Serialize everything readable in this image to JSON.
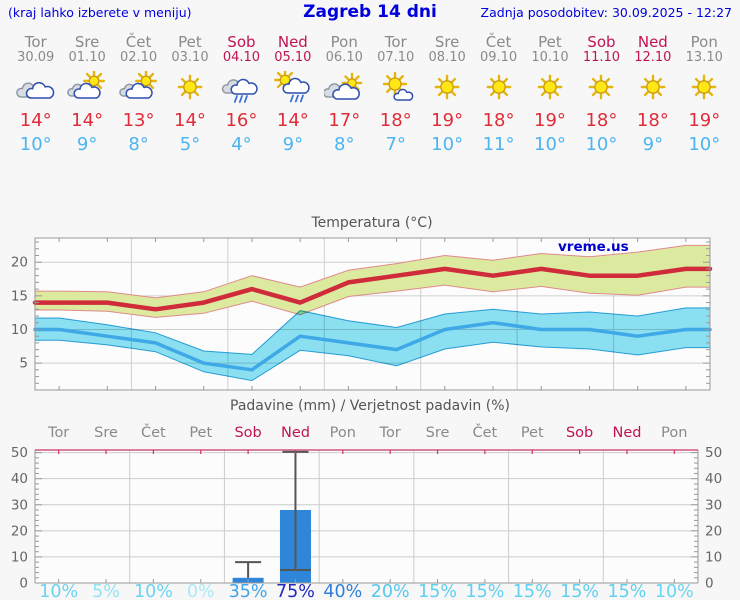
{
  "header": {
    "left_note": "(kraj lahko izberete v meniju)",
    "title": "Zagreb 14 dni",
    "updated": "Zadnja posodobitev: 30.09.2025 - 12:27"
  },
  "watermark": "vreme.us",
  "colors": {
    "header_blue": "#0000dd",
    "weekday_gray": "#8a8a8a",
    "weekend_crimson": "#c01355",
    "tmax_red": "#e02d39",
    "tmin_blue": "#4cb4f0",
    "background": "#f7f7f7"
  },
  "forecast": {
    "days": [
      {
        "name": "Tor",
        "date": "30.09",
        "weekend": false,
        "icon": "cloudy",
        "tmax": "14°",
        "tmin": "10°"
      },
      {
        "name": "Sre",
        "date": "01.10",
        "weekend": false,
        "icon": "partly-sunny",
        "tmax": "14°",
        "tmin": "9°"
      },
      {
        "name": "Čet",
        "date": "02.10",
        "weekend": false,
        "icon": "partly-sunny",
        "tmax": "13°",
        "tmin": "8°"
      },
      {
        "name": "Pet",
        "date": "03.10",
        "weekend": false,
        "icon": "sunny",
        "tmax": "14°",
        "tmin": "5°"
      },
      {
        "name": "Sob",
        "date": "04.10",
        "weekend": true,
        "icon": "rain",
        "tmax": "16°",
        "tmin": "4°"
      },
      {
        "name": "Ned",
        "date": "05.10",
        "weekend": true,
        "icon": "sun-rain",
        "tmax": "14°",
        "tmin": "9°"
      },
      {
        "name": "Pon",
        "date": "06.10",
        "weekend": false,
        "icon": "mostly-cloudy",
        "tmax": "17°",
        "tmin": "8°"
      },
      {
        "name": "Tor",
        "date": "07.10",
        "weekend": false,
        "icon": "mostly-sunny",
        "tmax": "18°",
        "tmin": "7°"
      },
      {
        "name": "Sre",
        "date": "08.10",
        "weekend": false,
        "icon": "sunny",
        "tmax": "19°",
        "tmin": "10°"
      },
      {
        "name": "Čet",
        "date": "09.10",
        "weekend": false,
        "icon": "sunny",
        "tmax": "18°",
        "tmin": "11°"
      },
      {
        "name": "Pet",
        "date": "10.10",
        "weekend": false,
        "icon": "sunny",
        "tmax": "19°",
        "tmin": "10°"
      },
      {
        "name": "Sob",
        "date": "11.10",
        "weekend": true,
        "icon": "sunny",
        "tmax": "18°",
        "tmin": "10°"
      },
      {
        "name": "Ned",
        "date": "12.10",
        "weekend": true,
        "icon": "sunny",
        "tmax": "18°",
        "tmin": "9°"
      },
      {
        "name": "Pon",
        "date": "13.10",
        "weekend": false,
        "icon": "sunny",
        "tmax": "19°",
        "tmin": "10°"
      }
    ]
  },
  "chart_data": [
    {
      "type": "line",
      "title": "Temperatura (°C)",
      "categories": [
        "Tor",
        "Sre",
        "Čet",
        "Pet",
        "Sob",
        "Ned",
        "Pon",
        "Tor",
        "Sre",
        "Čet",
        "Pet",
        "Sob",
        "Ned",
        "Pon"
      ],
      "series": [
        {
          "name": "max temperature",
          "color": "#cf2b3a",
          "values": [
            14,
            14,
            13,
            14,
            16,
            14,
            17,
            18,
            19,
            18,
            19,
            18,
            18,
            19
          ]
        },
        {
          "name": "min temperature",
          "color": "#3fa8e6",
          "values": [
            10,
            9,
            8,
            5,
            4,
            9,
            8,
            7,
            10,
            11,
            10,
            10,
            9,
            10
          ]
        }
      ],
      "bands": [
        {
          "name": "max range",
          "fill": "#dcea9f",
          "edge": "#e08a8a",
          "upper": [
            15.7,
            15.6,
            14.7,
            15.6,
            18.0,
            16.3,
            18.8,
            19.8,
            21.0,
            20.3,
            21.3,
            20.8,
            21.5,
            22.5
          ],
          "lower": [
            12.9,
            12.7,
            11.8,
            12.4,
            14.2,
            12.2,
            14.9,
            15.7,
            16.6,
            15.6,
            16.4,
            15.4,
            15.1,
            16.3
          ]
        },
        {
          "name": "min range",
          "fill": "#8ce2f4",
          "edge": "#35a8dc",
          "upper": [
            11.7,
            10.7,
            9.5,
            6.8,
            6.3,
            12.8,
            11.3,
            10.3,
            12.3,
            13.0,
            12.3,
            12.6,
            12.0,
            13.2
          ],
          "lower": [
            8.4,
            7.7,
            6.7,
            3.7,
            2.4,
            6.9,
            6.1,
            4.6,
            7.1,
            8.1,
            7.4,
            7.1,
            6.2,
            7.3
          ]
        }
      ],
      "ylim": [
        1,
        23.6
      ],
      "yticks": [
        5,
        10,
        15,
        20
      ],
      "grid": true,
      "legend": "none"
    },
    {
      "type": "bar",
      "title": "Padavine (mm) / Verjetnost padavin (%)",
      "categories": [
        "Tor",
        "Sre",
        "Čet",
        "Pet",
        "Sob",
        "Ned",
        "Pon",
        "Tor",
        "Sre",
        "Čet",
        "Pet",
        "Sob",
        "Ned",
        "Pon"
      ],
      "weekend_mask": [
        false,
        false,
        false,
        false,
        true,
        true,
        false,
        false,
        false,
        false,
        false,
        true,
        true,
        false
      ],
      "values": [
        0,
        0,
        0,
        0,
        2,
        28,
        0,
        0,
        0,
        0,
        0,
        0,
        0,
        0
      ],
      "whisker_low": [
        null,
        null,
        null,
        null,
        null,
        5,
        null,
        null,
        null,
        null,
        null,
        null,
        null,
        null
      ],
      "whisker_high": [
        null,
        null,
        null,
        null,
        8,
        50.3,
        null,
        null,
        null,
        null,
        null,
        null,
        null,
        null
      ],
      "probabilities": [
        "10%",
        "5%",
        "10%",
        "0%",
        "35%",
        "75%",
        "40%",
        "20%",
        "15%",
        "15%",
        "15%",
        "15%",
        "15%",
        "10%"
      ],
      "probability_colors": [
        "#68d5f2",
        "#92e3f6",
        "#68d5f2",
        "#abeaf8",
        "#3fa4e9",
        "#2127bd",
        "#2e7fd9",
        "#55c7ee",
        "#5ed0f0",
        "#5ed0f0",
        "#5ed0f0",
        "#5ed0f0",
        "#5ed0f0",
        "#68d5f2"
      ],
      "ylim": [
        0,
        51
      ],
      "yticks": [
        0,
        10,
        20,
        30,
        40,
        50
      ],
      "ylabel_left": true,
      "ylabel_right": true,
      "bar_color": "#2e86d9",
      "whisker_color": "#555555",
      "top_border_color": "#cc3366",
      "grid": true
    }
  ]
}
